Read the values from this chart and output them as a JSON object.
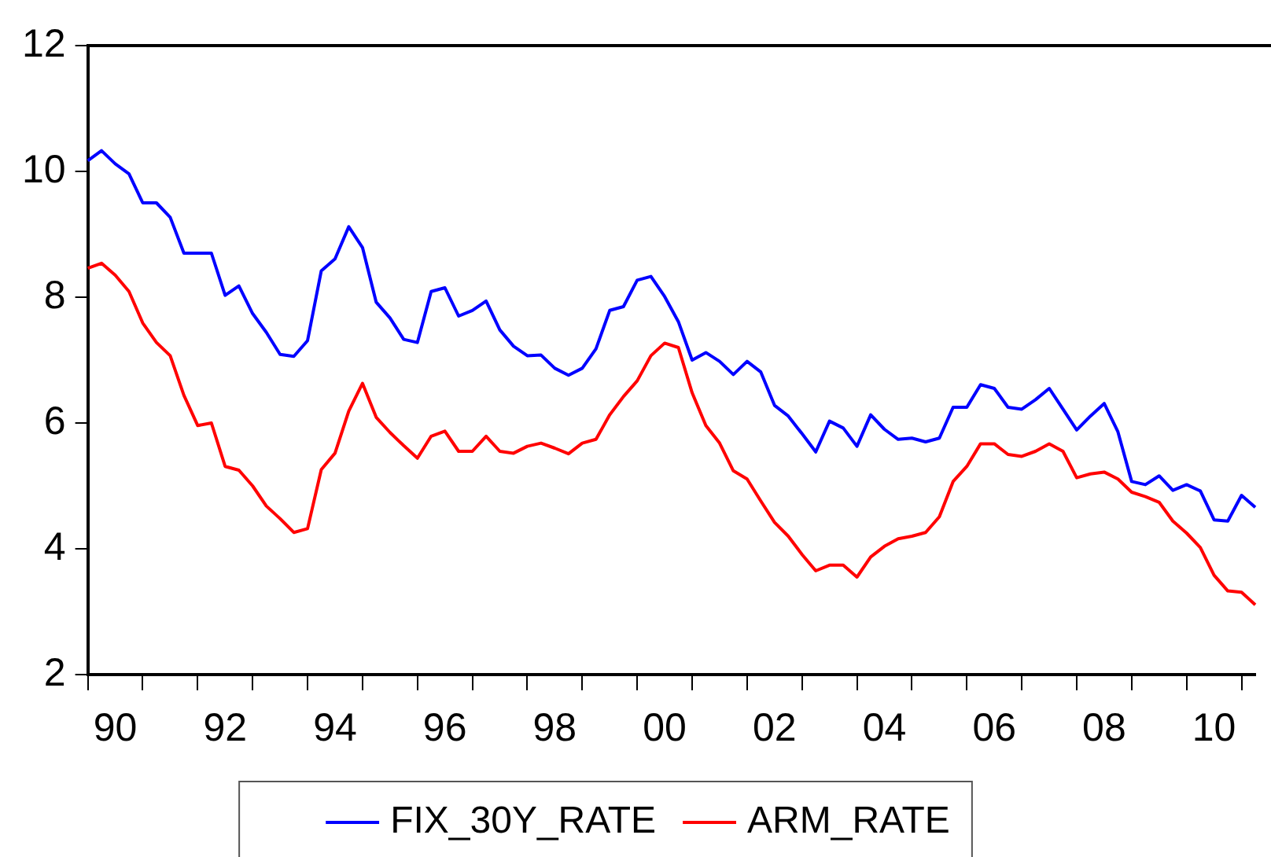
{
  "chart_data": {
    "type": "line",
    "categories": [
      null,
      null,
      "90",
      null,
      null,
      null,
      null,
      null,
      null,
      null,
      "92",
      null,
      null,
      null,
      null,
      null,
      null,
      null,
      "94",
      null,
      null,
      null,
      null,
      null,
      null,
      null,
      "96",
      null,
      null,
      null,
      null,
      null,
      null,
      null,
      "98",
      null,
      null,
      null,
      null,
      null,
      null,
      null,
      "00",
      null,
      null,
      null,
      null,
      null,
      null,
      null,
      "02",
      null,
      null,
      null,
      null,
      null,
      null,
      null,
      "04",
      null,
      null,
      null,
      null,
      null,
      null,
      null,
      "06",
      null,
      null,
      null,
      null,
      null,
      null,
      null,
      "08",
      null,
      null,
      null,
      null,
      null,
      null,
      null,
      "10",
      null,
      null,
      null
    ],
    "series": [
      {
        "name": "FIX_30Y_RATE",
        "color": "#0000ff",
        "values": [
          10.17,
          10.33,
          10.12,
          9.96,
          9.5,
          9.5,
          9.27,
          8.7,
          8.7,
          8.7,
          8.03,
          8.18,
          7.74,
          7.44,
          7.09,
          7.06,
          7.31,
          8.42,
          8.61,
          9.12,
          8.79,
          7.92,
          7.67,
          7.33,
          7.28,
          8.09,
          8.15,
          7.7,
          7.79,
          7.94,
          7.48,
          7.22,
          7.07,
          7.08,
          6.87,
          6.76,
          6.87,
          7.18,
          7.79,
          7.85,
          8.27,
          8.33,
          8.01,
          7.61,
          7.0,
          7.12,
          6.98,
          6.77,
          6.98,
          6.81,
          6.28,
          6.11,
          5.83,
          5.54,
          6.03,
          5.92,
          5.63,
          6.13,
          5.9,
          5.74,
          5.76,
          5.7,
          5.76,
          6.25,
          6.25,
          6.61,
          6.55,
          6.25,
          6.22,
          6.37,
          6.55,
          6.22,
          5.89,
          6.11,
          6.31,
          5.86,
          5.07,
          5.02,
          5.16,
          4.93,
          5.02,
          4.92,
          4.46,
          4.44,
          4.85,
          4.66
        ]
      },
      {
        "name": "ARM_RATE",
        "color": "#ff0000",
        "values": [
          8.46,
          8.54,
          8.35,
          8.09,
          7.59,
          7.28,
          7.07,
          6.44,
          5.96,
          6.0,
          5.31,
          5.25,
          5.0,
          4.68,
          4.48,
          4.26,
          4.32,
          5.26,
          5.52,
          6.19,
          6.63,
          6.09,
          5.85,
          5.64,
          5.44,
          5.79,
          5.87,
          5.55,
          5.55,
          5.79,
          5.55,
          5.52,
          5.63,
          5.68,
          5.6,
          5.51,
          5.68,
          5.74,
          6.13,
          6.42,
          6.67,
          7.07,
          7.27,
          7.2,
          6.48,
          5.96,
          5.68,
          5.24,
          5.11,
          4.76,
          4.42,
          4.2,
          3.91,
          3.65,
          3.74,
          3.74,
          3.55,
          3.87,
          4.04,
          4.16,
          4.2,
          4.26,
          4.51,
          5.07,
          5.31,
          5.67,
          5.67,
          5.5,
          5.47,
          5.55,
          5.67,
          5.55,
          5.13,
          5.19,
          5.22,
          5.11,
          4.9,
          4.83,
          4.74,
          4.44,
          4.25,
          4.02,
          3.58,
          3.33,
          3.31,
          3.11
        ]
      }
    ],
    "ylim": [
      2,
      12
    ],
    "yticks": [
      2,
      4,
      6,
      8,
      10,
      12
    ],
    "grid": false,
    "legend": "bottom",
    "marker": "none",
    "line_style": "solid"
  }
}
